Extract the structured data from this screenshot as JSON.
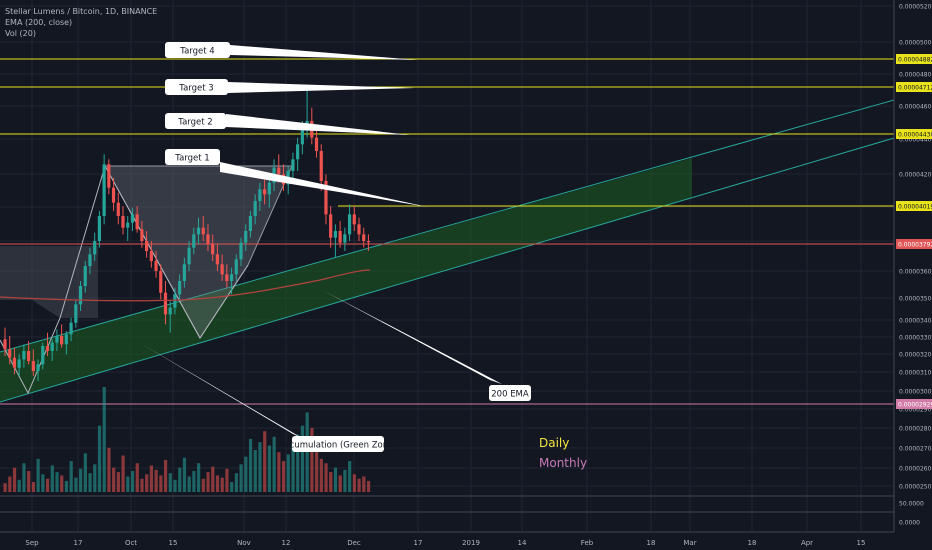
{
  "header": {
    "title": "Stellar Lumens / Bitcoin, 1D, BINANCE",
    "indicator_ema": "EMA (200, close)",
    "indicator_vol": "Vol (20)"
  },
  "timeframes": {
    "daily": "Daily",
    "monthly": "Monthly",
    "daily_color": "#f5e642",
    "monthly_color": "#c879b8"
  },
  "colors": {
    "background": "#131722",
    "grid": "#1f2433",
    "candle_up": "#26a69a",
    "candle_down": "#ef5350",
    "target_line": "#e8e31b",
    "channel_fill": "#1b5e20",
    "channel_line": "#26a69a",
    "ema": "#b4433f",
    "last_price": "#e05555",
    "monthly_line": "#d27ba8"
  },
  "chart_data": {
    "type": "candlestick",
    "title": "Stellar Lumens / Bitcoin, 1D, BINANCE",
    "x_tick_labels": [
      "Sep",
      "17",
      "Oct",
      "15",
      "Nov",
      "12",
      "Dec",
      "17",
      "2019",
      "14",
      "Feb",
      "18",
      "Mar",
      "18",
      "Apr",
      "15"
    ],
    "y_tick_labels": [
      "0.00005200",
      "0.00005000",
      "0.00004800",
      "0.00004600",
      "0.00004400",
      "0.00004200",
      "0.00004000",
      "0.00003800",
      "0.00003600",
      "0.00003500",
      "0.00003400",
      "0.00003300",
      "0.00003200",
      "0.00003100",
      "0.00003000",
      "0.00002900",
      "0.00002800",
      "0.00002700",
      "0.00002600",
      "0.00002505"
    ],
    "volume_axis_labels": [
      "50.0000",
      "0.0000"
    ],
    "price_tags": [
      {
        "value": "0.00004882",
        "kind": "target"
      },
      {
        "value": "0.00004712",
        "kind": "target"
      },
      {
        "value": "0.00004430",
        "kind": "target"
      },
      {
        "value": "0.00004019",
        "kind": "target"
      },
      {
        "value": "0.00003792",
        "kind": "last"
      },
      {
        "value": "0.00002929",
        "kind": "monthly"
      }
    ],
    "annotations": [
      "Target 4",
      "Target 3",
      "Target 2",
      "Target 1",
      "200 EMA",
      "Accumulation (Green Zone)"
    ],
    "ohlc": [
      [
        3210,
        3280,
        3110,
        3150
      ],
      [
        3150,
        3230,
        3060,
        3100
      ],
      [
        3100,
        3160,
        3000,
        3040
      ],
      [
        3040,
        3120,
        2990,
        3090
      ],
      [
        3090,
        3180,
        3040,
        3140
      ],
      [
        3140,
        3200,
        3060,
        3080
      ],
      [
        3080,
        3150,
        2990,
        3020
      ],
      [
        3020,
        3090,
        2960,
        3060
      ],
      [
        3060,
        3190,
        3030,
        3170
      ],
      [
        3170,
        3250,
        3110,
        3140
      ],
      [
        3140,
        3210,
        3080,
        3190
      ],
      [
        3190,
        3270,
        3140,
        3230
      ],
      [
        3230,
        3300,
        3160,
        3180
      ],
      [
        3180,
        3260,
        3120,
        3240
      ],
      [
        3240,
        3340,
        3200,
        3310
      ],
      [
        3310,
        3450,
        3280,
        3420
      ],
      [
        3420,
        3560,
        3380,
        3530
      ],
      [
        3530,
        3680,
        3490,
        3650
      ],
      [
        3650,
        3760,
        3600,
        3720
      ],
      [
        3720,
        3850,
        3680,
        3800
      ],
      [
        3800,
        3980,
        3760,
        3950
      ],
      [
        3950,
        4320,
        3900,
        4260
      ],
      [
        4260,
        4290,
        4080,
        4120
      ],
      [
        4120,
        4180,
        3980,
        4030
      ],
      [
        4030,
        4090,
        3900,
        3950
      ],
      [
        3950,
        4010,
        3840,
        3880
      ],
      [
        3880,
        3950,
        3800,
        3910
      ],
      [
        3910,
        4000,
        3860,
        3960
      ],
      [
        3960,
        4010,
        3850,
        3870
      ],
      [
        3870,
        3920,
        3760,
        3800
      ],
      [
        3800,
        3860,
        3700,
        3740
      ],
      [
        3740,
        3800,
        3640,
        3680
      ],
      [
        3680,
        3740,
        3580,
        3620
      ],
      [
        3620,
        3660,
        3450,
        3490
      ],
      [
        3490,
        3560,
        3300,
        3360
      ],
      [
        3360,
        3440,
        3250,
        3400
      ],
      [
        3400,
        3520,
        3360,
        3480
      ],
      [
        3480,
        3600,
        3440,
        3560
      ],
      [
        3560,
        3700,
        3520,
        3660
      ],
      [
        3660,
        3800,
        3620,
        3760
      ],
      [
        3760,
        3880,
        3720,
        3840
      ],
      [
        3840,
        3940,
        3780,
        3880
      ],
      [
        3880,
        3950,
        3800,
        3840
      ],
      [
        3840,
        3900,
        3740,
        3780
      ],
      [
        3780,
        3840,
        3680,
        3720
      ],
      [
        3720,
        3780,
        3620,
        3660
      ],
      [
        3660,
        3720,
        3560,
        3600
      ],
      [
        3600,
        3660,
        3520,
        3560
      ],
      [
        3560,
        3640,
        3480,
        3600
      ],
      [
        3600,
        3720,
        3560,
        3690
      ],
      [
        3690,
        3820,
        3650,
        3790
      ],
      [
        3790,
        3900,
        3740,
        3860
      ],
      [
        3860,
        3980,
        3820,
        3950
      ],
      [
        3950,
        4080,
        3900,
        4040
      ],
      [
        4040,
        4150,
        3980,
        4110
      ],
      [
        4110,
        4200,
        4020,
        4080
      ],
      [
        4080,
        4180,
        4000,
        4150
      ],
      [
        4150,
        4290,
        4100,
        4240
      ],
      [
        4240,
        4320,
        4150,
        4200
      ],
      [
        4200,
        4260,
        4100,
        4140
      ],
      [
        4140,
        4250,
        4080,
        4220
      ],
      [
        4220,
        4330,
        4160,
        4290
      ],
      [
        4290,
        4420,
        4220,
        4380
      ],
      [
        4380,
        4520,
        4320,
        4470
      ],
      [
        4470,
        4720,
        4420,
        4520
      ],
      [
        4520,
        4600,
        4380,
        4420
      ],
      [
        4420,
        4480,
        4300,
        4340
      ],
      [
        4340,
        4380,
        4100,
        4160
      ],
      [
        4160,
        4200,
        3900,
        3960
      ],
      [
        3960,
        4010,
        3760,
        3820
      ],
      [
        3820,
        3900,
        3700,
        3860
      ],
      [
        3860,
        3920,
        3760,
        3790
      ],
      [
        3790,
        3880,
        3740,
        3840
      ],
      [
        3840,
        4019,
        3800,
        3960
      ],
      [
        3960,
        4010,
        3860,
        3900
      ],
      [
        3900,
        3940,
        3800,
        3840
      ],
      [
        3840,
        3880,
        3760,
        3800
      ],
      [
        3800,
        3840,
        3740,
        3792
      ]
    ],
    "volume": [
      8,
      14,
      22,
      11,
      26,
      19,
      9,
      30,
      16,
      12,
      24,
      18,
      15,
      10,
      28,
      13,
      21,
      35,
      17,
      25,
      60,
      95,
      40,
      22,
      18,
      33,
      14,
      19,
      26,
      12,
      16,
      24,
      20,
      15,
      29,
      17,
      11,
      22,
      31,
      14,
      19,
      26,
      12,
      18,
      23,
      15,
      13,
      21,
      9,
      17,
      25,
      32,
      48,
      38,
      45,
      55,
      42,
      50,
      36,
      28,
      34,
      44,
      52,
      60,
      72,
      58,
      40,
      30,
      26,
      18,
      22,
      15,
      20,
      28,
      16,
      12,
      14,
      10
    ]
  }
}
